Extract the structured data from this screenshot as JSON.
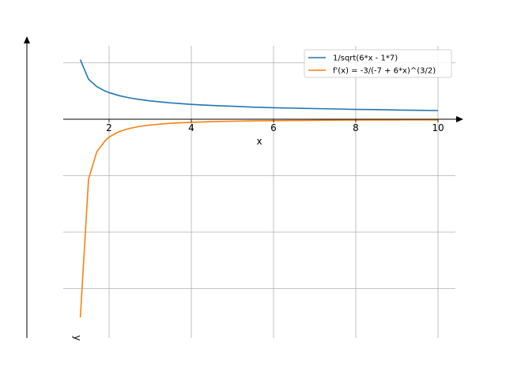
{
  "chart_data": {
    "type": "line",
    "title": "",
    "xlabel": "x",
    "ylabel": "y",
    "xlim": [
      0.9,
      10.5
    ],
    "ylim": [
      -3.9,
      1.1
    ],
    "x_ticks": [
      2,
      4,
      6,
      8,
      10
    ],
    "x_tick_labels": [
      "2",
      "4",
      "6",
      "8",
      "10"
    ],
    "y_gridlines": [
      1,
      0,
      -1,
      -2,
      -3
    ],
    "grid": true,
    "legend_position": "top-right",
    "series": [
      {
        "name": "1/sqrt(6*x - 1*7)",
        "color": "#1f77b4",
        "x": [
          1.3,
          1.5,
          1.7,
          1.9,
          2.0,
          2.25,
          2.5,
          2.75,
          3.0,
          3.5,
          4.0,
          4.5,
          5.0,
          5.5,
          6.0,
          6.5,
          7.0,
          7.5,
          8.0,
          8.5,
          9.0,
          9.5,
          10.0
        ],
        "y": [
          1.054,
          0.707,
          0.577,
          0.5,
          0.471,
          0.417,
          0.378,
          0.348,
          0.324,
          0.289,
          0.263,
          0.243,
          0.229,
          0.214,
          0.204,
          0.196,
          0.189,
          0.182,
          0.174,
          0.17,
          0.164,
          0.158,
          0.154
        ]
      },
      {
        "name": "f'(x) = -3/(-7 + 6*x)^(3/2)",
        "color": "#ff7f0e",
        "x": [
          1.3,
          1.5,
          1.7,
          1.9,
          2.0,
          2.25,
          2.5,
          2.75,
          3.0,
          3.5,
          4.0,
          4.5,
          5.0,
          5.5,
          6.0,
          6.5,
          7.0,
          7.5,
          8.0,
          8.5,
          9.0,
          9.5,
          10.0
        ],
        "y": [
          -3.51,
          -1.06,
          -0.577,
          -0.385,
          -0.314,
          -0.217,
          -0.162,
          -0.126,
          -0.102,
          -0.072,
          -0.054,
          -0.043,
          -0.035,
          -0.029,
          -0.025,
          -0.022,
          -0.019,
          -0.017,
          -0.015,
          -0.014,
          -0.012,
          -0.011,
          -0.011
        ]
      }
    ]
  }
}
